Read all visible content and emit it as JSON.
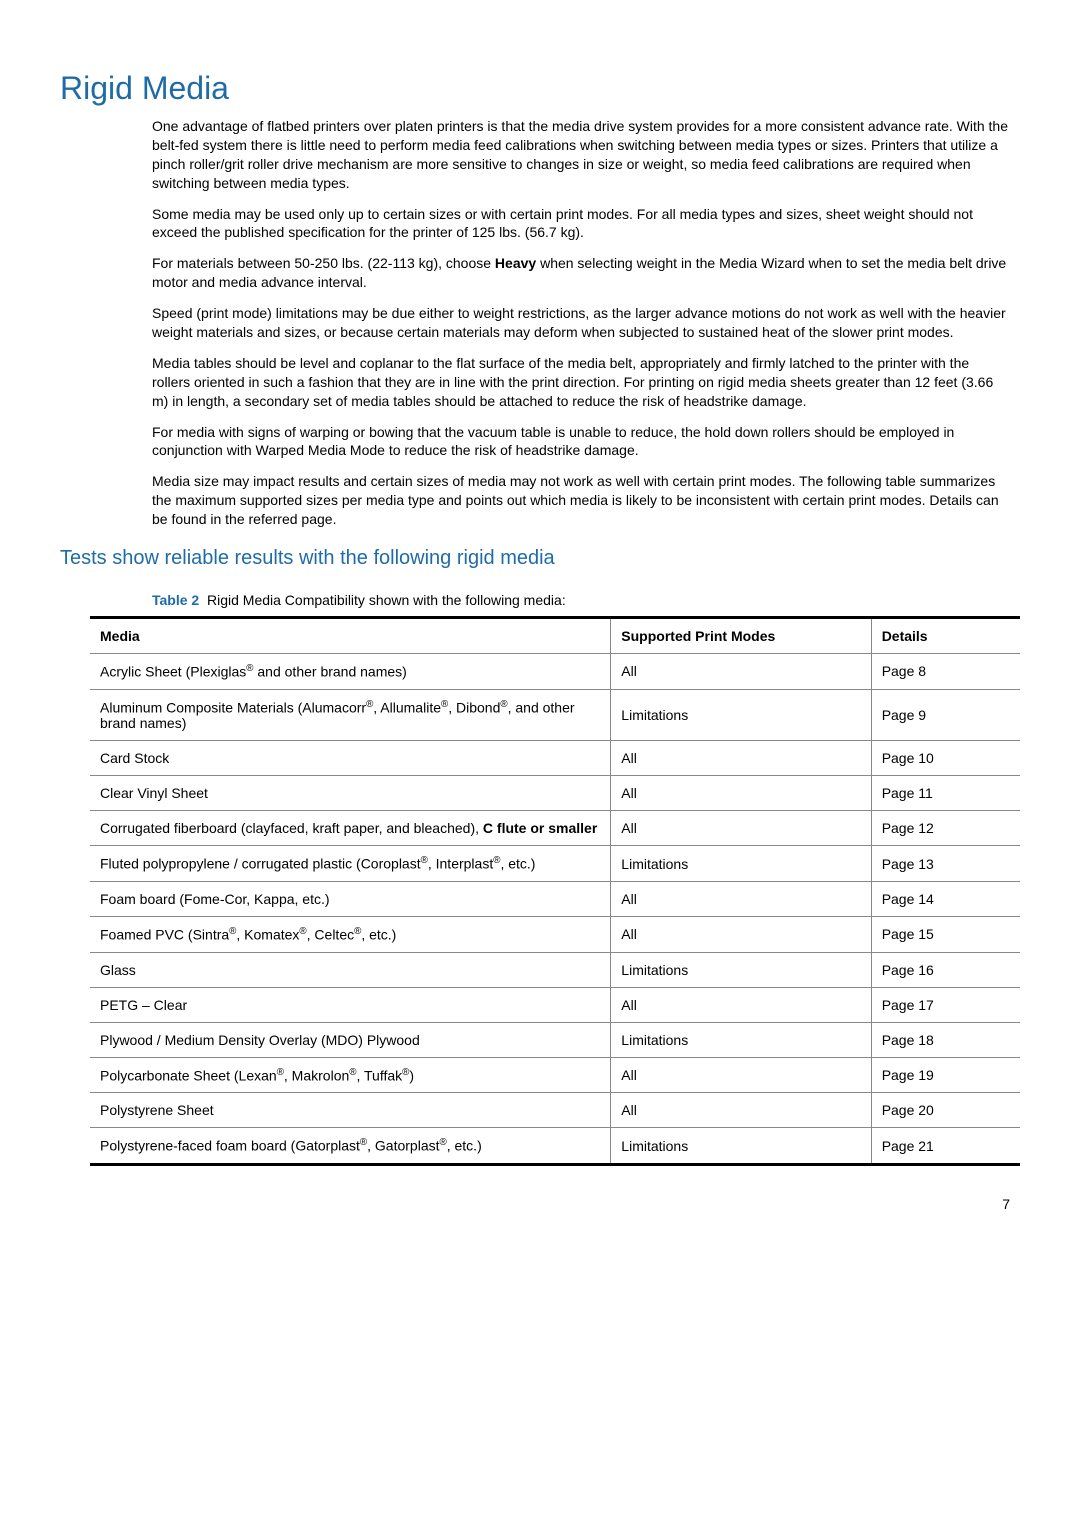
{
  "colors": {
    "heading": "#1f6ba8",
    "text": "#000000",
    "background": "#ffffff",
    "table_border_heavy": "#000000",
    "table_border_light": "#888888"
  },
  "heading": "Rigid Media",
  "paragraphs": [
    "One advantage of flatbed printers over platen printers is that the media drive system provides for a more consistent advance rate. With the belt-fed system there is little need to perform media feed calibrations when switching between media types or sizes. Printers that utilize a pinch roller/grit roller drive mechanism are more sensitive to changes in size or weight, so media feed calibrations are required when switching between media types.",
    "Some media may be used only up to certain sizes or with certain print modes. For all media types and sizes, sheet weight should not exceed the published specification for the printer of 125 lbs. (56.7 kg).",
    "For materials between 50-250 lbs. (22-113 kg), choose Heavy when selecting weight in the Media Wizard when to set the media belt drive motor and media advance interval.",
    "Speed (print mode) limitations may be due either to weight restrictions, as the larger advance motions do not work as well with the heavier weight materials and sizes, or because certain materials may deform when subjected to sustained heat of the slower print modes.",
    "Media tables should be level and coplanar to the flat surface of the media belt, appropriately and firmly latched to the printer with the rollers oriented in such a fashion that they are in line with the print direction. For printing on rigid media sheets greater than 12 feet (3.66 m) in length, a secondary set of media tables should be attached to reduce the risk of headstrike damage.",
    "For media with signs of warping or bowing that the vacuum table is unable to reduce, the hold down rollers should be employed in conjunction with Warped Media Mode to reduce the risk of headstrike damage.",
    "Media size may impact results and certain sizes of media may not work as well with certain print modes. The following table summarizes the maximum supported sizes per media type and points out which media is likely to be inconsistent with certain print modes. Details can be found in the referred page."
  ],
  "bold_word_para3": "Heavy",
  "subheading": "Tests show reliable results with the following rigid media",
  "table_caption_label": "Table 2",
  "table_caption_text": "Rigid Media Compatibility shown with the following media:",
  "table": {
    "columns": [
      "Media",
      "Supported Print Modes",
      "Details"
    ],
    "col_widths_pct": [
      56,
      28,
      16
    ],
    "rows": [
      {
        "media_html": "Acrylic Sheet (Plexiglas<sup>®</sup> and other brand names)",
        "modes": "All",
        "details": "Page 8"
      },
      {
        "media_html": "Aluminum Composite Materials (Alumacorr<sup>®</sup>, Allumalite<sup>®</sup>, Dibond<sup>®</sup>, and other brand names)",
        "modes": "Limitations",
        "details": "Page 9"
      },
      {
        "media_html": "Card Stock",
        "modes": "All",
        "details": "Page 10"
      },
      {
        "media_html": "Clear Vinyl Sheet",
        "modes": "All",
        "details": "Page 11"
      },
      {
        "media_html": "Corrugated fiberboard (clayfaced, kraft paper, and bleached), <b>C flute or smaller</b>",
        "modes": "All",
        "details": "Page 12"
      },
      {
        "media_html": "Fluted polypropylene / corrugated plastic (Coroplast<sup>®</sup>, Interplast<sup>®</sup>, etc.)",
        "modes": "Limitations",
        "details": "Page 13"
      },
      {
        "media_html": "Foam board (Fome-Cor, Kappa, etc.)",
        "modes": "All",
        "details": "Page 14"
      },
      {
        "media_html": "Foamed PVC (Sintra<sup>®</sup>, Komatex<sup>®</sup>, Celtec<sup>®</sup>, etc.)",
        "modes": "All",
        "details": "Page 15"
      },
      {
        "media_html": "Glass",
        "modes": "Limitations",
        "details": "Page 16"
      },
      {
        "media_html": "PETG – Clear",
        "modes": "All",
        "details": "Page 17"
      },
      {
        "media_html": "Plywood / Medium Density Overlay (MDO) Plywood",
        "modes": "Limitations",
        "details": "Page 18"
      },
      {
        "media_html": "Polycarbonate Sheet (Lexan<sup>®</sup>, Makrolon<sup>®</sup>, Tuffak<sup>®</sup>)",
        "modes": "All",
        "details": "Page 19"
      },
      {
        "media_html": "Polystyrene Sheet",
        "modes": "All",
        "details": "Page 20"
      },
      {
        "media_html": "Polystyrene-faced foam board (Gatorplast<sup>®</sup>, Gatorplast<sup>®</sup>, etc.)",
        "modes": "Limitations",
        "details": "Page 21"
      }
    ]
  },
  "page_number": "7"
}
